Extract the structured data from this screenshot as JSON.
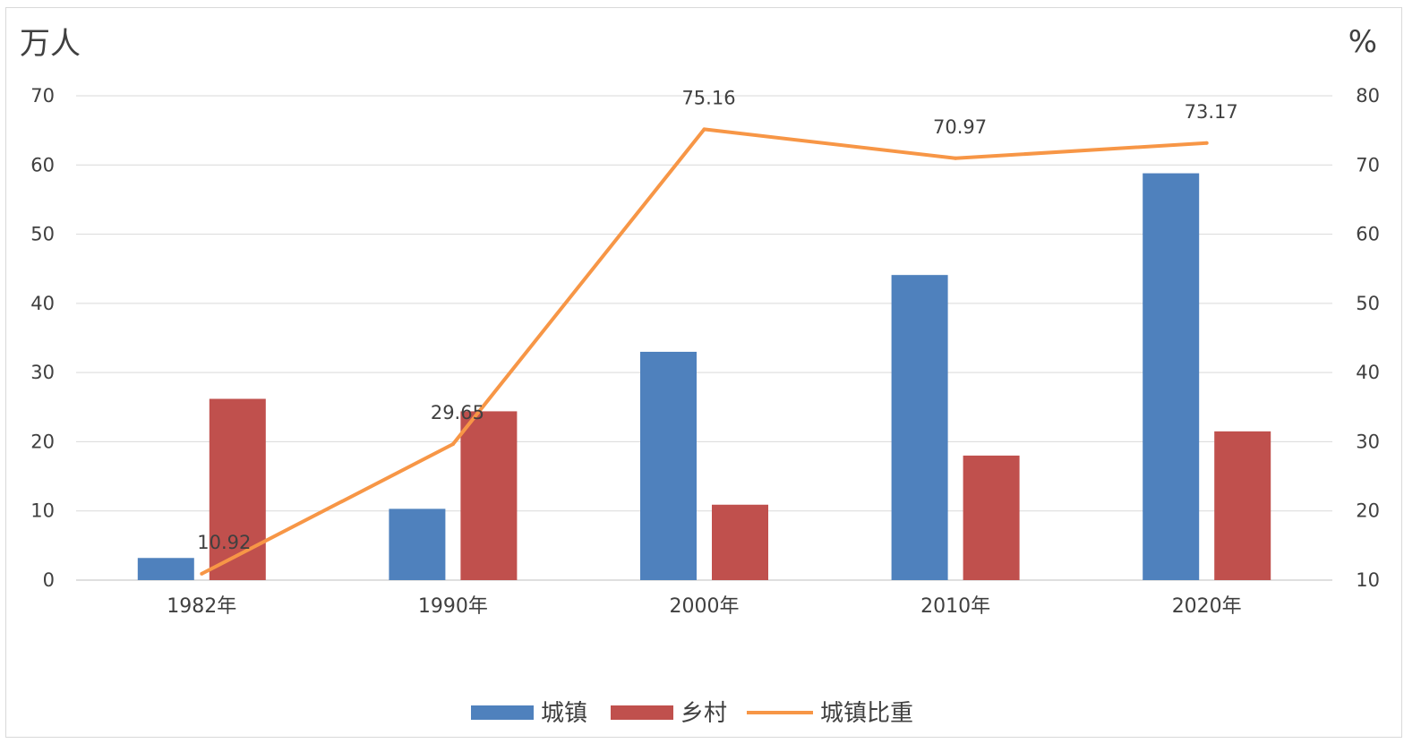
{
  "chart_data": {
    "type": "bar",
    "categories": [
      "1982年",
      "1990年",
      "2000年",
      "2010年",
      "2020年"
    ],
    "y_left_unit": "万人",
    "y_right_unit": "%",
    "ylim_left": [
      0,
      70
    ],
    "ylim_right": [
      10,
      80
    ],
    "yticks_left": [
      0,
      10,
      20,
      30,
      40,
      50,
      60,
      70
    ],
    "yticks_right": [
      10,
      20,
      30,
      40,
      50,
      60,
      70,
      80
    ],
    "grid": true,
    "legend_position": "bottom",
    "series": [
      {
        "name": "城镇",
        "type": "bar",
        "axis": "left",
        "color": "#4f81bd",
        "values": [
          3.2,
          10.3,
          33.0,
          44.1,
          58.8
        ]
      },
      {
        "name": "乡村",
        "type": "bar",
        "axis": "left",
        "color": "#c0504d",
        "values": [
          26.2,
          24.4,
          10.9,
          18.0,
          21.5
        ]
      },
      {
        "name": "城镇比重",
        "type": "line",
        "axis": "right",
        "color": "#f79646",
        "values": [
          10.92,
          29.65,
          75.16,
          70.97,
          73.17
        ],
        "labels": [
          "10.92",
          "29.65",
          "75.16",
          "70.97",
          "73.17"
        ]
      }
    ]
  }
}
